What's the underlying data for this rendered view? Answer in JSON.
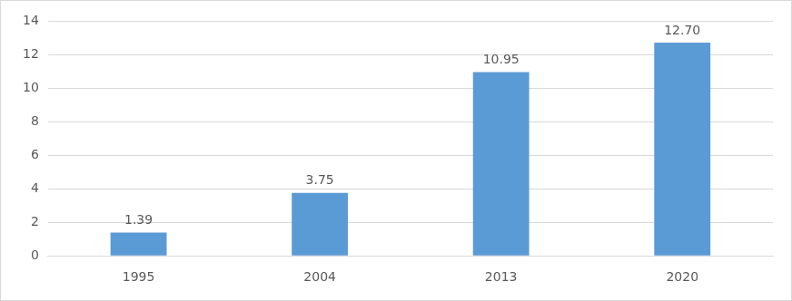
{
  "chart_data": {
    "type": "bar",
    "categories": [
      "1995",
      "2004",
      "2013",
      "2020"
    ],
    "values": [
      1.39,
      3.75,
      10.95,
      12.7
    ],
    "value_labels": [
      "1.39",
      "3.75",
      "10.95",
      "12.70"
    ],
    "color": "#5b9bd5",
    "ylim": [
      0,
      14
    ],
    "yticks": [
      0,
      2,
      4,
      6,
      8,
      10,
      12,
      14
    ],
    "grid": true,
    "data_labels": true
  }
}
